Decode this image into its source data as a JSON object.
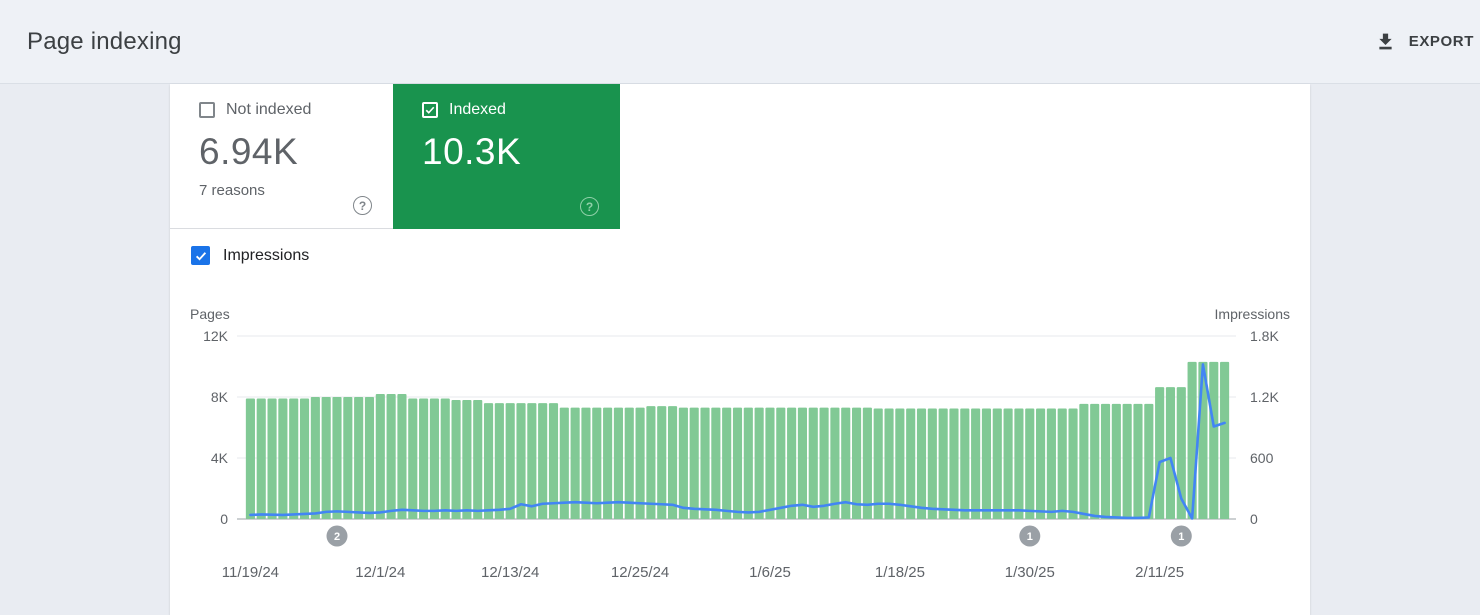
{
  "header": {
    "title": "Page indexing",
    "export_label": "EXPORT"
  },
  "tiles": {
    "not_indexed": {
      "label": "Not indexed",
      "value": "6.94K",
      "sub": "7 reasons",
      "checked": false
    },
    "indexed": {
      "label": "Indexed",
      "value": "10.3K",
      "checked": true
    }
  },
  "impressions_toggle": {
    "label": "Impressions",
    "checked": true
  },
  "colors": {
    "indexed_green": "#19934e",
    "bar_green": "#81c995",
    "line_blue": "#4285f4",
    "checkbox_blue": "#1a73e8",
    "badge_gray": "#9aa0a6",
    "header_bg": "#eef1f6",
    "page_bg": "#e9ecf2"
  },
  "chart_data": {
    "type": "bar",
    "title": "",
    "xlabel": "",
    "x_tick_indices": [
      0,
      12,
      24,
      36,
      48,
      60,
      72,
      84
    ],
    "x_tick_labels": [
      "11/19/24",
      "12/1/24",
      "12/13/24",
      "12/25/24",
      "1/6/25",
      "1/18/25",
      "1/30/25",
      "2/11/25"
    ],
    "left_axis": {
      "title": "Pages",
      "max": 12000,
      "ticks": [
        {
          "v": 0,
          "label": "0"
        },
        {
          "v": 4000,
          "label": "4K"
        },
        {
          "v": 8000,
          "label": "8K"
        },
        {
          "v": 12000,
          "label": "12K"
        }
      ]
    },
    "right_axis": {
      "title": "Impressions",
      "max": 1800,
      "ticks": [
        {
          "v": 0,
          "label": "0"
        },
        {
          "v": 600,
          "label": "600"
        },
        {
          "v": 1200,
          "label": "1.2K"
        },
        {
          "v": 1800,
          "label": "1.8K"
        }
      ]
    },
    "series": [
      {
        "name": "Indexed pages",
        "type": "bar",
        "axis": "left",
        "color": "#81c995",
        "values": [
          7900,
          7900,
          7900,
          7900,
          7900,
          7900,
          8000,
          8000,
          8000,
          8000,
          8000,
          8000,
          8200,
          8200,
          8200,
          7900,
          7900,
          7900,
          7900,
          7800,
          7800,
          7800,
          7600,
          7600,
          7600,
          7600,
          7600,
          7600,
          7600,
          7300,
          7300,
          7300,
          7300,
          7300,
          7300,
          7300,
          7300,
          7400,
          7400,
          7400,
          7300,
          7300,
          7300,
          7300,
          7300,
          7300,
          7300,
          7300,
          7300,
          7300,
          7300,
          7300,
          7300,
          7300,
          7300,
          7300,
          7300,
          7300,
          7250,
          7250,
          7250,
          7250,
          7250,
          7250,
          7250,
          7250,
          7250,
          7250,
          7250,
          7250,
          7250,
          7250,
          7250,
          7250,
          7250,
          7250,
          7250,
          7550,
          7550,
          7550,
          7550,
          7550,
          7550,
          7550,
          8650,
          8650,
          8650,
          10300,
          10300,
          10300,
          10300
        ]
      },
      {
        "name": "Impressions",
        "type": "line",
        "axis": "right",
        "color": "#4285f4",
        "values": [
          40,
          45,
          42,
          40,
          45,
          50,
          55,
          70,
          75,
          70,
          65,
          60,
          65,
          80,
          90,
          85,
          80,
          80,
          85,
          80,
          85,
          80,
          85,
          90,
          100,
          145,
          125,
          150,
          155,
          160,
          165,
          160,
          155,
          160,
          165,
          160,
          155,
          150,
          145,
          140,
          110,
          100,
          95,
          90,
          80,
          70,
          65,
          70,
          90,
          110,
          130,
          140,
          120,
          130,
          150,
          165,
          145,
          140,
          150,
          150,
          140,
          125,
          110,
          100,
          95,
          90,
          85,
          85,
          85,
          85,
          85,
          85,
          80,
          75,
          70,
          80,
          70,
          50,
          30,
          20,
          15,
          10,
          10,
          15,
          560,
          600,
          200,
          5,
          1520,
          910,
          945
        ]
      }
    ],
    "annotations": [
      {
        "index": 8,
        "label": "2"
      },
      {
        "index": 72,
        "label": "1"
      },
      {
        "index": 86,
        "label": "1"
      }
    ]
  }
}
